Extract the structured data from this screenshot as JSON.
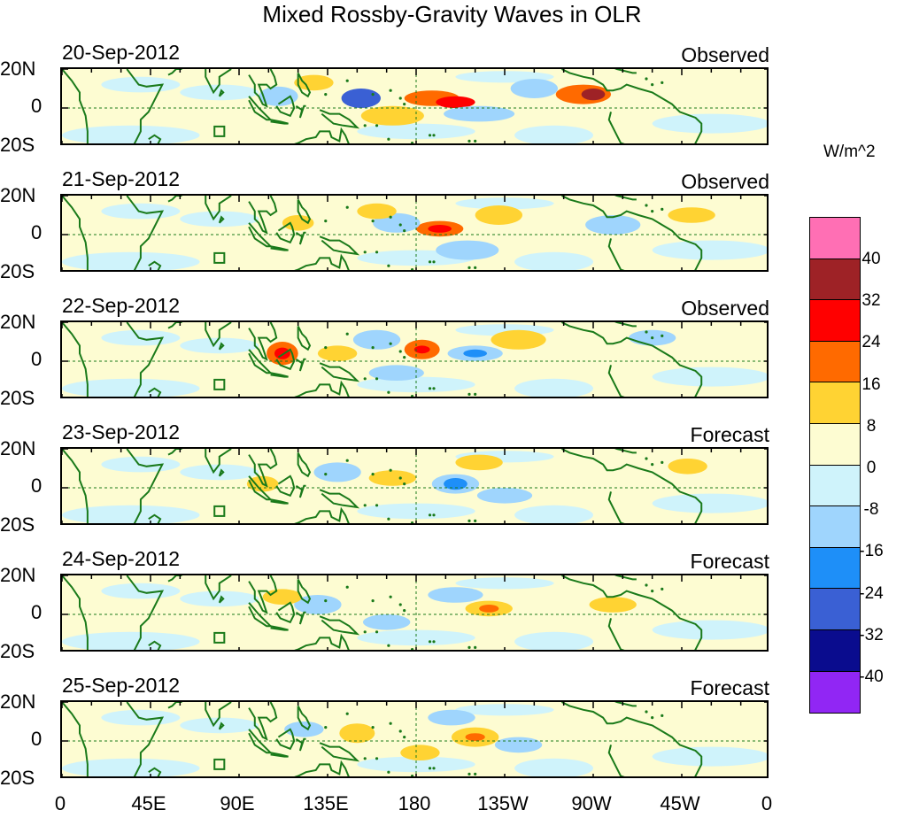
{
  "title": "Mixed Rossby-Gravity Waves in OLR",
  "units_label": "W/m^2",
  "panels": [
    {
      "date": "20-Sep-2012",
      "kind": "Observed",
      "anomalies": [
        {
          "lon": 188,
          "lat": 5,
          "rx": 14,
          "ry": 4,
          "level": 16
        },
        {
          "lon": 200,
          "lat": 3,
          "rx": 10,
          "ry": 3,
          "level": 24
        },
        {
          "lon": 265,
          "lat": 7,
          "rx": 14,
          "ry": 5,
          "level": 16
        },
        {
          "lon": 270,
          "lat": 7,
          "rx": 6,
          "ry": 3,
          "level": 32
        },
        {
          "lon": 152,
          "lat": 5,
          "rx": 10,
          "ry": 5,
          "level": -24
        },
        {
          "lon": 110,
          "lat": 6,
          "rx": 10,
          "ry": 5,
          "level": -8
        },
        {
          "lon": 168,
          "lat": -4,
          "rx": 16,
          "ry": 5,
          "level": 8
        },
        {
          "lon": 240,
          "lat": 10,
          "rx": 12,
          "ry": 5,
          "level": -8
        },
        {
          "lon": 212,
          "lat": -3,
          "rx": 18,
          "ry": 4,
          "level": -8
        },
        {
          "lon": 128,
          "lat": 13,
          "rx": 10,
          "ry": 4,
          "level": 8
        }
      ]
    },
    {
      "date": "21-Sep-2012",
      "kind": "Observed",
      "anomalies": [
        {
          "lon": 192,
          "lat": 3,
          "rx": 12,
          "ry": 4,
          "level": 16
        },
        {
          "lon": 192,
          "lat": 3,
          "rx": 6,
          "ry": 2,
          "level": 24
        },
        {
          "lon": 170,
          "lat": 6,
          "rx": 12,
          "ry": 5,
          "level": -8
        },
        {
          "lon": 160,
          "lat": 12,
          "rx": 10,
          "ry": 4,
          "level": 8
        },
        {
          "lon": 222,
          "lat": 10,
          "rx": 12,
          "ry": 5,
          "level": 8
        },
        {
          "lon": 206,
          "lat": -8,
          "rx": 16,
          "ry": 5,
          "level": -8
        },
        {
          "lon": 320,
          "lat": 10,
          "rx": 12,
          "ry": 4,
          "level": 8
        },
        {
          "lon": 120,
          "lat": 6,
          "rx": 8,
          "ry": 4,
          "level": 8
        },
        {
          "lon": 280,
          "lat": 5,
          "rx": 14,
          "ry": 5,
          "level": -8
        }
      ]
    },
    {
      "date": "22-Sep-2012",
      "kind": "Observed",
      "anomalies": [
        {
          "lon": 112,
          "lat": 4,
          "rx": 8,
          "ry": 6,
          "level": 16
        },
        {
          "lon": 112,
          "lat": 4,
          "rx": 4,
          "ry": 3,
          "level": 24
        },
        {
          "lon": 183,
          "lat": 6,
          "rx": 9,
          "ry": 5,
          "level": 16
        },
        {
          "lon": 183,
          "lat": 6,
          "rx": 4,
          "ry": 2,
          "level": 24
        },
        {
          "lon": 210,
          "lat": 4,
          "rx": 14,
          "ry": 4,
          "level": -8
        },
        {
          "lon": 210,
          "lat": 4,
          "rx": 6,
          "ry": 2,
          "level": -16
        },
        {
          "lon": 232,
          "lat": 11,
          "rx": 14,
          "ry": 5,
          "level": 8
        },
        {
          "lon": 160,
          "lat": 11,
          "rx": 12,
          "ry": 5,
          "level": -8
        },
        {
          "lon": 170,
          "lat": -6,
          "rx": 14,
          "ry": 4,
          "level": -8
        },
        {
          "lon": 300,
          "lat": 12,
          "rx": 12,
          "ry": 4,
          "level": -8
        },
        {
          "lon": 140,
          "lat": 4,
          "rx": 10,
          "ry": 4,
          "level": 8
        }
      ]
    },
    {
      "date": "23-Sep-2012",
      "kind": "Forecast",
      "anomalies": [
        {
          "lon": 200,
          "lat": 2,
          "rx": 12,
          "ry": 5,
          "level": -8
        },
        {
          "lon": 200,
          "lat": 2,
          "rx": 6,
          "ry": 3,
          "level": -16
        },
        {
          "lon": 168,
          "lat": 5,
          "rx": 12,
          "ry": 4,
          "level": 8
        },
        {
          "lon": 212,
          "lat": 13,
          "rx": 12,
          "ry": 4,
          "level": 8
        },
        {
          "lon": 102,
          "lat": 2,
          "rx": 8,
          "ry": 4,
          "level": 8
        },
        {
          "lon": 140,
          "lat": 8,
          "rx": 12,
          "ry": 5,
          "level": -8
        },
        {
          "lon": 225,
          "lat": -4,
          "rx": 14,
          "ry": 4,
          "level": -8
        },
        {
          "lon": 318,
          "lat": 11,
          "rx": 10,
          "ry": 4,
          "level": 8
        }
      ]
    },
    {
      "date": "24-Sep-2012",
      "kind": "Forecast",
      "anomalies": [
        {
          "lon": 217,
          "lat": 3,
          "rx": 12,
          "ry": 4,
          "level": 8
        },
        {
          "lon": 217,
          "lat": 3,
          "rx": 5,
          "ry": 2,
          "level": 16
        },
        {
          "lon": 200,
          "lat": 10,
          "rx": 14,
          "ry": 4,
          "level": -8
        },
        {
          "lon": 130,
          "lat": 5,
          "rx": 12,
          "ry": 5,
          "level": -8
        },
        {
          "lon": 112,
          "lat": 9,
          "rx": 10,
          "ry": 4,
          "level": 8
        },
        {
          "lon": 165,
          "lat": -4,
          "rx": 12,
          "ry": 4,
          "level": -8
        },
        {
          "lon": 280,
          "lat": 5,
          "rx": 12,
          "ry": 4,
          "level": 8
        }
      ]
    },
    {
      "date": "25-Sep-2012",
      "kind": "Forecast",
      "anomalies": [
        {
          "lon": 150,
          "lat": 4,
          "rx": 9,
          "ry": 5,
          "level": 8
        },
        {
          "lon": 210,
          "lat": 2,
          "rx": 12,
          "ry": 5,
          "level": 8
        },
        {
          "lon": 210,
          "lat": 2,
          "rx": 5,
          "ry": 2,
          "level": 16
        },
        {
          "lon": 182,
          "lat": -6,
          "rx": 10,
          "ry": 4,
          "level": 8
        },
        {
          "lon": 123,
          "lat": 6,
          "rx": 10,
          "ry": 4,
          "level": -8
        },
        {
          "lon": 232,
          "lat": -2,
          "rx": 12,
          "ry": 4,
          "level": -8
        },
        {
          "lon": 198,
          "lat": 12,
          "rx": 12,
          "ry": 4,
          "level": -8
        }
      ]
    }
  ],
  "lat_labels": [
    "20N",
    "0",
    "20S"
  ],
  "lon_labels": [
    "0",
    "45E",
    "90E",
    "135E",
    "180",
    "135W",
    "90W",
    "45W",
    "0"
  ],
  "colorbar": {
    "labels": [
      "40",
      "32",
      "24",
      "16",
      "8",
      "0",
      "-8",
      "-16",
      "-24",
      "-32",
      "-40"
    ],
    "colors": [
      "#ff6fb4",
      "#9e2226",
      "#ff0000",
      "#ff6a00",
      "#ffd333",
      "#fdfcd2",
      "#cff3fb",
      "#9fd5fd",
      "#1e8ff8",
      "#3a60d4",
      "#0a0c8e",
      "#9126f4"
    ]
  },
  "level_colors": {
    "8": "#ffd333",
    "16": "#ff6a00",
    "24": "#ff0000",
    "32": "#9e2226",
    "40": "#ff6fb4",
    "-8": "#9fd5fd",
    "-16": "#1e8ff8",
    "-24": "#3a60d4",
    "-32": "#0a0c8e",
    "-40": "#9126f4"
  },
  "coast_color": "#1a7a1a",
  "background_color": "#fdfcd2",
  "neg_background_color": "#cff3fb"
}
